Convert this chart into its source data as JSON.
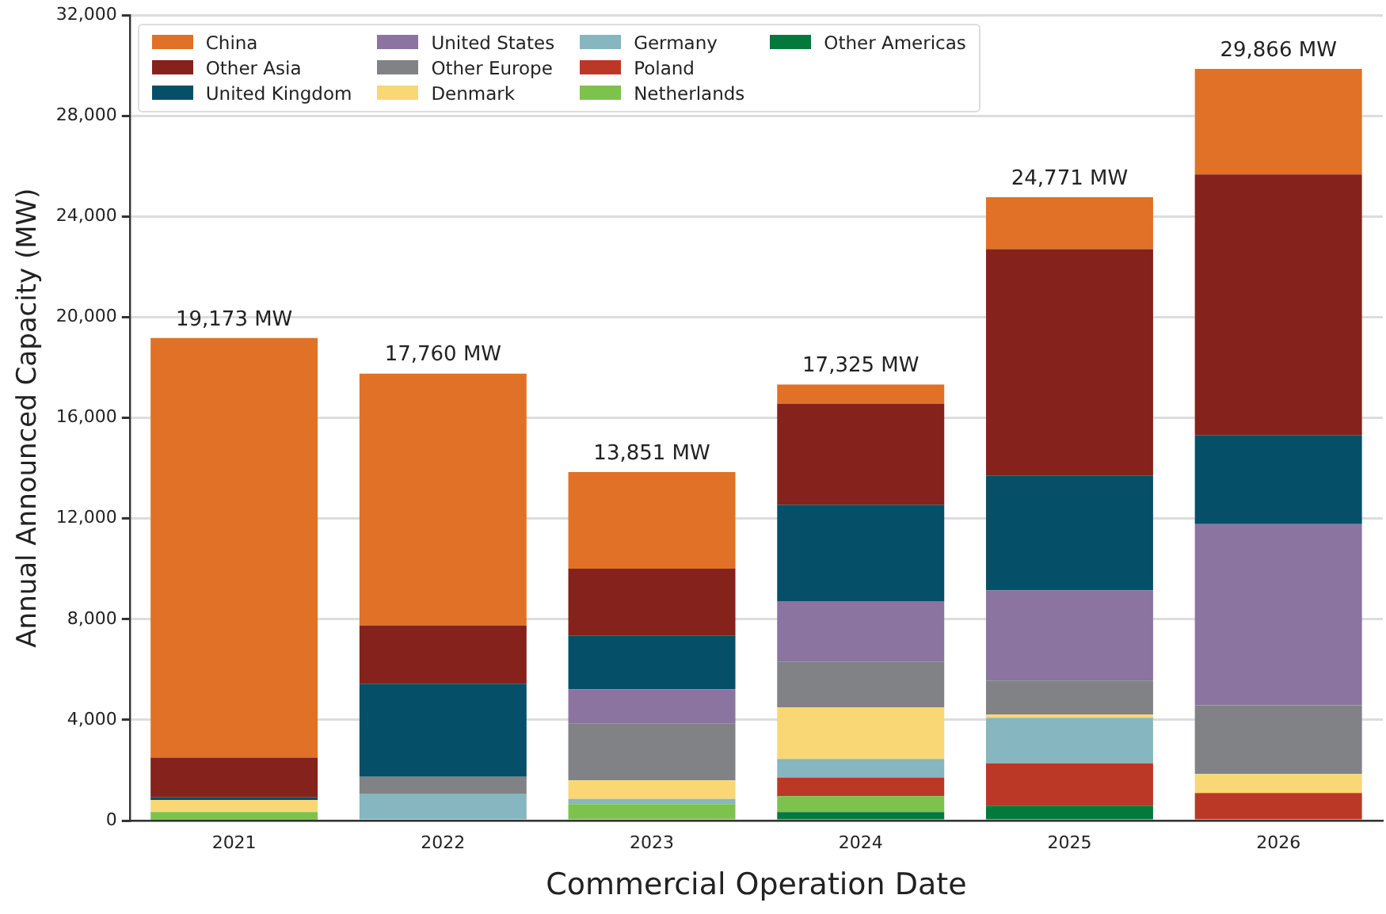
{
  "chart_data": {
    "type": "bar",
    "xlabel": "Commercial Operation Date",
    "ylabel": "Annual Announced Capacity (MW)",
    "categories": [
      "2021",
      "2022",
      "2023",
      "2024",
      "2025",
      "2026"
    ],
    "stacked": true,
    "series": [
      {
        "name": "Other Americas",
        "color": "#037a3b",
        "values": [
          60,
          0,
          0,
          340,
          590,
          0
        ]
      },
      {
        "name": "Netherlands",
        "color": "#7ec24e",
        "values": [
          280,
          0,
          650,
          630,
          0,
          0
        ]
      },
      {
        "name": "Poland",
        "color": "#bc3826",
        "values": [
          0,
          0,
          0,
          740,
          1680,
          1090
        ]
      },
      {
        "name": "Germany",
        "color": "#86b6bf",
        "values": [
          0,
          1070,
          210,
          740,
          1810,
          0
        ]
      },
      {
        "name": "Denmark",
        "color": "#f9d775",
        "values": [
          480,
          0,
          740,
          2040,
          130,
          760
        ]
      },
      {
        "name": "Other Europe",
        "color": "#808285",
        "values": [
          0,
          670,
          2250,
          1810,
          1350,
          2730
        ]
      },
      {
        "name": "United States",
        "color": "#8b74a0",
        "values": [
          0,
          0,
          1370,
          2420,
          3580,
          7200
        ]
      },
      {
        "name": "United Kingdom",
        "color": "#064f68",
        "values": [
          100,
          3700,
          2120,
          3830,
          4560,
          3540
        ]
      },
      {
        "name": "Other Asia",
        "color": "#84221b",
        "values": [
          1580,
          2310,
          2670,
          4000,
          9010,
          10350
        ]
      },
      {
        "name": "China",
        "color": "#e07126",
        "values": [
          16673,
          10010,
          3841,
          775,
          2061,
          4196
        ]
      }
    ],
    "totals": [
      "19,173 MW",
      "17,760 MW",
      "13,851 MW",
      "17,325 MW",
      "24,771 MW",
      "29,866 MW"
    ],
    "ylim": [
      0,
      32000
    ],
    "yticks": [
      {
        "value": 0,
        "label": "0"
      },
      {
        "value": 4000,
        "label": "4,000"
      },
      {
        "value": 8000,
        "label": "8,000"
      },
      {
        "value": 12000,
        "label": "12,000"
      },
      {
        "value": 16000,
        "label": "16,000"
      },
      {
        "value": 20000,
        "label": "20,000"
      },
      {
        "value": 24000,
        "label": "24,000"
      },
      {
        "value": 28000,
        "label": "28,000"
      },
      {
        "value": 32000,
        "label": "32,000"
      }
    ],
    "grid": "y",
    "legend": "top left"
  }
}
